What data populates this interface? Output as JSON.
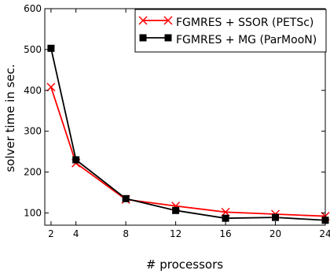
{
  "chart_data": {
    "type": "line",
    "title": "",
    "xlabel": "# processors",
    "ylabel": "solver time in sec.",
    "x": [
      2,
      4,
      8,
      12,
      16,
      20,
      24
    ],
    "xticks": [
      "2",
      "4",
      "8",
      "12",
      "16",
      "20",
      "24"
    ],
    "xlim": [
      1.5,
      24
    ],
    "ylim": [
      70,
      600
    ],
    "yticks": [
      "100",
      "200",
      "300",
      "400",
      "500",
      "600"
    ],
    "legend_position": "top-right",
    "grid": false,
    "series": [
      {
        "name": "FGMRES + SSOR (PETSc)",
        "color": "#ff0000",
        "marker": "x",
        "values": [
          408,
          222,
          133,
          117,
          102,
          97,
          92
        ]
      },
      {
        "name": "FGMRES + MG (ParMooN)",
        "color": "#000000",
        "marker": "square",
        "values": [
          503,
          230,
          135,
          106,
          87,
          89,
          82
        ]
      }
    ]
  }
}
